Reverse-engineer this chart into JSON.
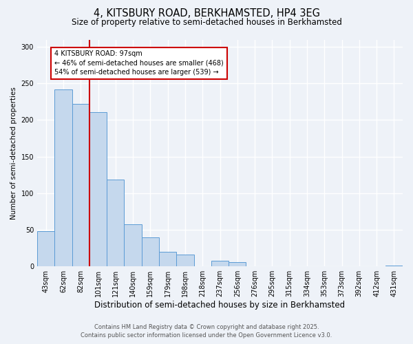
{
  "title_line1": "4, KITSBURY ROAD, BERKHAMSTED, HP4 3EG",
  "title_line2": "Size of property relative to semi-detached houses in Berkhamsted",
  "xlabel": "Distribution of semi-detached houses by size in Berkhamsted",
  "ylabel": "Number of semi-detached properties",
  "categories": [
    "43sqm",
    "62sqm",
    "82sqm",
    "101sqm",
    "121sqm",
    "140sqm",
    "159sqm",
    "179sqm",
    "198sqm",
    "218sqm",
    "237sqm",
    "256sqm",
    "276sqm",
    "295sqm",
    "315sqm",
    "334sqm",
    "353sqm",
    "373sqm",
    "392sqm",
    "412sqm",
    "431sqm"
  ],
  "values": [
    48,
    242,
    222,
    211,
    119,
    58,
    40,
    20,
    16,
    0,
    8,
    6,
    0,
    0,
    0,
    0,
    0,
    0,
    0,
    0,
    1
  ],
  "bar_color": "#c5d8ed",
  "bar_edge_color": "#5b9bd5",
  "property_bin_index": 2,
  "annotation_text": "4 KITSBURY ROAD: 97sqm\n← 46% of semi-detached houses are smaller (468)\n54% of semi-detached houses are larger (539) →",
  "vline_color": "#cc0000",
  "annotation_box_color": "#ffffff",
  "annotation_box_edge": "#cc0000",
  "footer_line1": "Contains HM Land Registry data © Crown copyright and database right 2025.",
  "footer_line2": "Contains public sector information licensed under the Open Government Licence v3.0.",
  "bg_color": "#eef2f8",
  "plot_bg_color": "#eef2f8",
  "grid_color": "#ffffff",
  "ylim": [
    0,
    310
  ],
  "yticks": [
    0,
    50,
    100,
    150,
    200,
    250,
    300
  ]
}
